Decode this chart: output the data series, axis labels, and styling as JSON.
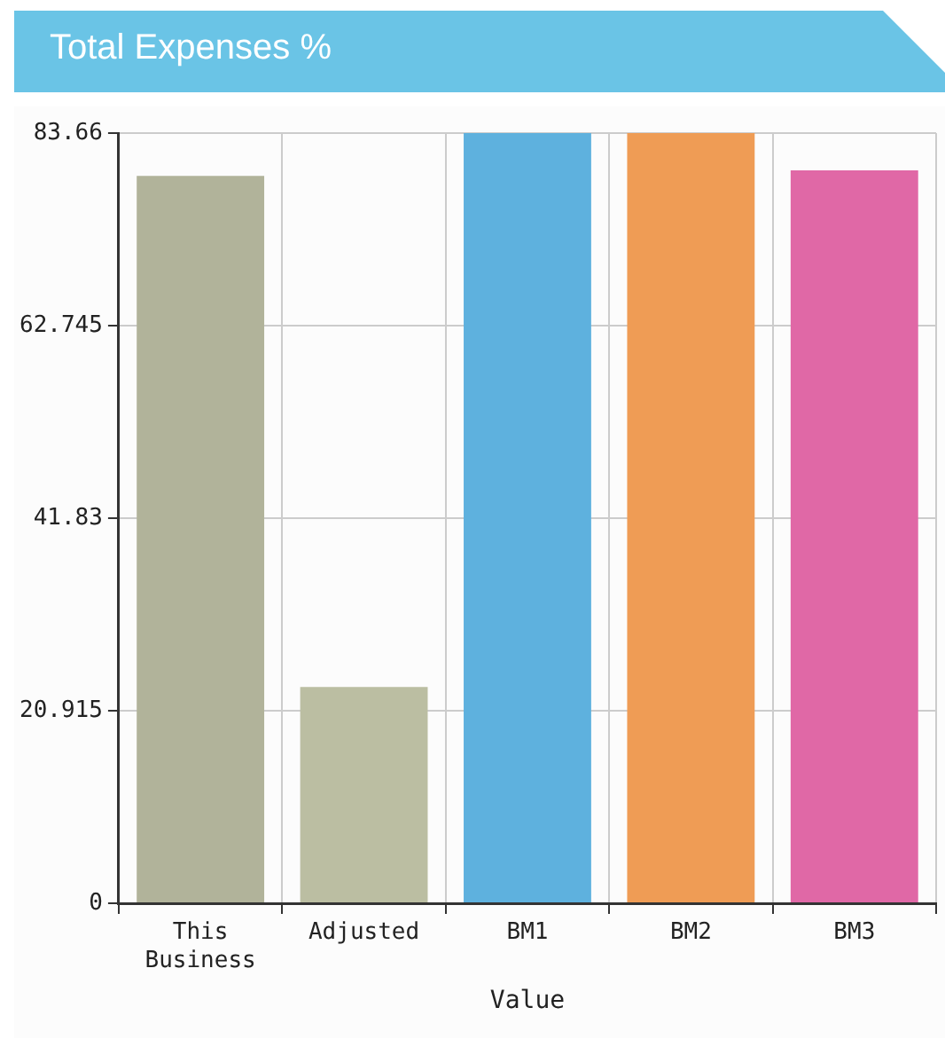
{
  "chart_data": {
    "type": "bar",
    "title": "Total Expenses %",
    "xlabel": "Value",
    "categories": [
      "This Business",
      "Adjusted",
      "BM1",
      "BM2",
      "BM3"
    ],
    "values": [
      79.0,
      23.5,
      83.66,
      83.66,
      79.6
    ],
    "colors": [
      "#b1b39a",
      "#bbbea2",
      "#5eb1de",
      "#ef9c55",
      "#e068a6"
    ],
    "ylim": [
      0,
      83.66
    ],
    "yticks": [
      0,
      20.915,
      41.83,
      62.745,
      83.66
    ],
    "grid": true
  }
}
